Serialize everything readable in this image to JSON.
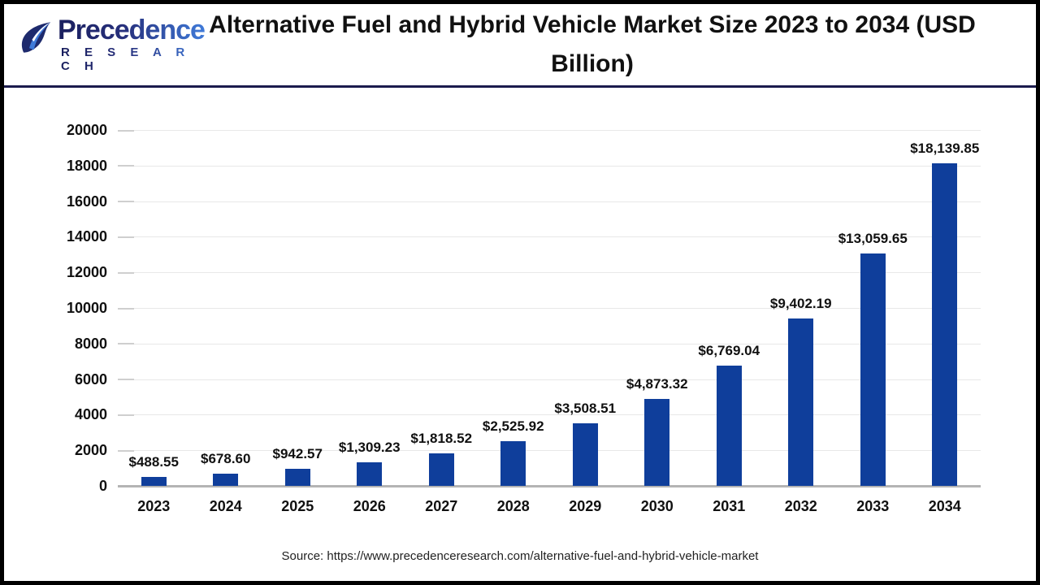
{
  "logo": {
    "name": "Precedence",
    "subtitle": "R E S E A R C H"
  },
  "header": {
    "title": "Alternative Fuel and Hybrid Vehicle Market Size 2023 to 2034 (USD Billion)"
  },
  "footer": {
    "source": "Source: https://www.precedenceresearch.com/alternative-fuel-and-hybrid-vehicle-market"
  },
  "colors": {
    "bar": "#0f3e9b",
    "gridline": "#e8e8e8",
    "axis_line": "#b4b4b4",
    "header_rule": "#1b1b4d",
    "logo_dark": "#1a1f5e",
    "logo_light": "#3f7ad9"
  },
  "chart_data": {
    "type": "bar",
    "title": "Alternative Fuel and Hybrid Vehicle Market Size 2023 to 2034 (USD Billion)",
    "xlabel": "",
    "ylabel": "",
    "categories": [
      "2023",
      "2024",
      "2025",
      "2026",
      "2027",
      "2028",
      "2029",
      "2030",
      "2031",
      "2032",
      "2033",
      "2034"
    ],
    "values": [
      488.55,
      678.6,
      942.57,
      1309.23,
      1818.52,
      2525.92,
      3508.51,
      4873.32,
      6769.04,
      9402.19,
      13059.65,
      18139.85
    ],
    "value_labels": [
      "$488.55",
      "$678.60",
      "$942.57",
      "$1,309.23",
      "$1,818.52",
      "$2,525.92",
      "$3,508.51",
      "$4,873.32",
      "$6,769.04",
      "$9,402.19",
      "$13,059.65",
      "$18,139.85"
    ],
    "ylim": [
      0,
      20000
    ],
    "yticks": [
      0,
      2000,
      4000,
      6000,
      8000,
      10000,
      12000,
      14000,
      16000,
      18000,
      20000
    ],
    "grid": "horizontal",
    "legend": "none",
    "bar_color": "#0f3e9b"
  }
}
